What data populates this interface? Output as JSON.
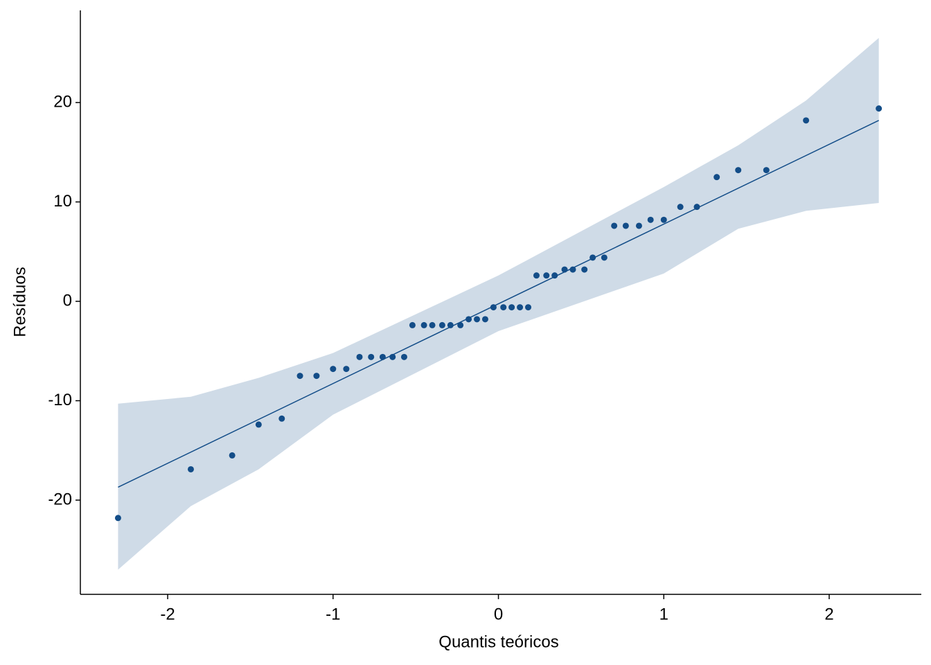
{
  "chart_data": {
    "type": "qq",
    "xlabel": "Quantis teóricos",
    "ylabel": "Resíduos",
    "x": [
      -2.3,
      -1.86,
      -1.61,
      -1.45,
      -1.31,
      -1.2,
      -1.1,
      -1.0,
      -0.92,
      -0.84,
      -0.77,
      -0.7,
      -0.64,
      -0.57,
      -0.52,
      -0.45,
      -0.4,
      -0.34,
      -0.29,
      -0.23,
      -0.18,
      -0.13,
      -0.08,
      -0.03,
      0.03,
      0.08,
      0.13,
      0.18,
      0.23,
      0.29,
      0.34,
      0.4,
      0.45,
      0.52,
      0.57,
      0.64,
      0.7,
      0.77,
      0.85,
      0.92,
      1.0,
      1.1,
      1.2,
      1.32,
      1.45,
      1.62,
      1.86,
      2.3
    ],
    "values": [
      -21.8,
      -16.9,
      -15.5,
      -12.4,
      -11.8,
      -7.5,
      -7.5,
      -6.8,
      -6.8,
      -5.6,
      -5.6,
      -5.6,
      -5.6,
      -5.6,
      -2.4,
      -2.4,
      -2.4,
      -2.4,
      -2.4,
      -2.4,
      -1.8,
      -1.8,
      -1.8,
      -0.6,
      -0.6,
      -0.6,
      -0.6,
      -0.6,
      2.6,
      2.6,
      2.6,
      3.2,
      3.2,
      3.2,
      4.4,
      4.4,
      7.6,
      7.6,
      7.6,
      8.2,
      8.2,
      9.5,
      9.5,
      12.5,
      13.2,
      13.2,
      18.2,
      19.4
    ],
    "color": "#134d88",
    "fit": {
      "x": [
        -2.3,
        2.3
      ],
      "y": [
        -18.7,
        18.2
      ]
    },
    "band": {
      "x": [
        -2.3,
        -1.86,
        -1.45,
        -1.0,
        0,
        1.0,
        1.45,
        1.86,
        2.3
      ],
      "upper": [
        -10.3,
        -9.6,
        -7.7,
        -5.2,
        2.6,
        11.5,
        15.7,
        20.2,
        26.5
      ],
      "lower": [
        -27.0,
        -20.6,
        -16.9,
        -11.4,
        -3.0,
        2.8,
        7.3,
        9.1,
        9.9
      ],
      "color": "#cfdbe7"
    },
    "xlim": [
      -2.528,
      2.557
    ],
    "ylim": [
      -29.48,
      29.27
    ],
    "xticks": [
      -2,
      -1,
      0,
      1,
      2
    ],
    "yticks": [
      -20,
      -10,
      0,
      10,
      20
    ]
  }
}
